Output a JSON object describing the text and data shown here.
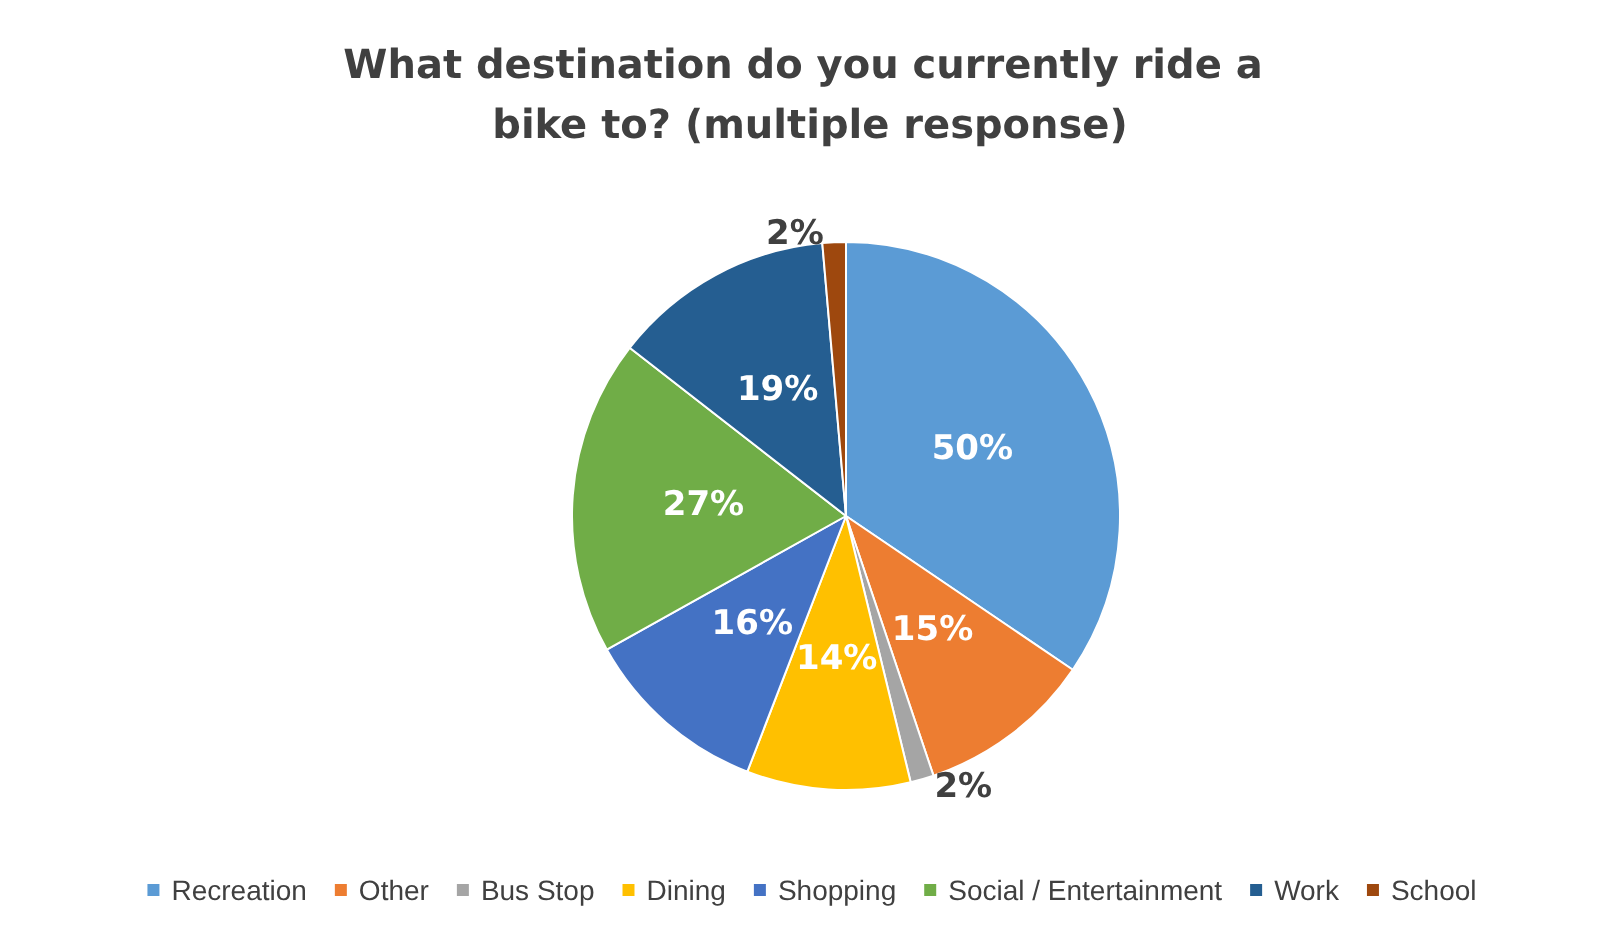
{
  "chart_data": {
    "type": "pie",
    "title": "What destination do you currently ride a bike to? (multiple response)",
    "categories": [
      "Recreation",
      "Other",
      "Bus Stop",
      "Dining",
      "Shopping",
      "Social / Entertainment",
      "Work",
      "School"
    ],
    "values": [
      50,
      15,
      2,
      14,
      16,
      27,
      19,
      2
    ],
    "value_labels": [
      "50%",
      "15%",
      "2%",
      "14%",
      "16%",
      "27%",
      "19%",
      "2%"
    ],
    "colors": [
      "#5b9bd5",
      "#ed7d31",
      "#a5a5a5",
      "#ffc000",
      "#4472c4",
      "#70ad47",
      "#255e91",
      "#9e480e"
    ],
    "legend": "bottom"
  }
}
